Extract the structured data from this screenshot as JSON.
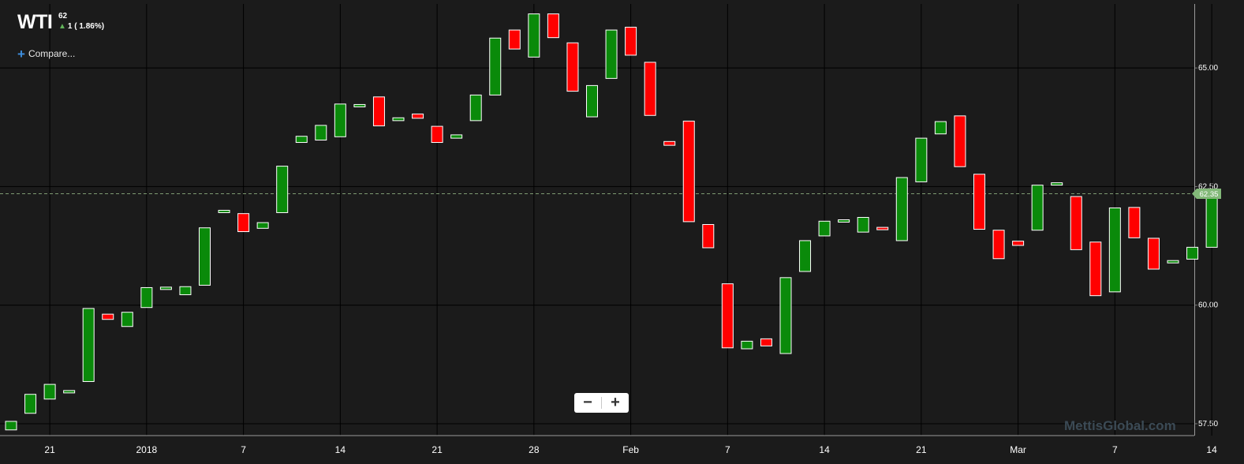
{
  "header": {
    "symbol": "WTI",
    "last_price": "62",
    "change_text": "1 ( 1.86%)",
    "change_direction": "up"
  },
  "toolbar": {
    "compare_label": "Compare..."
  },
  "zoom": {
    "minus_label": "−",
    "plus_label": "+"
  },
  "watermark": "MettisGlobal.com",
  "colors": {
    "background": "#1b1b1b",
    "grid": "#000000",
    "up": "#0a8a0a",
    "down": "#ff0000",
    "last_price_tag": "#83b979",
    "up_arrow": "#62b35a",
    "compare_plus": "#3d8fe0"
  },
  "chart_data": {
    "type": "candlestick",
    "title": "WTI",
    "x_tick_labels": [
      "21",
      "2018",
      "7",
      "14",
      "21",
      "28",
      "Feb",
      "7",
      "14",
      "21",
      "Mar",
      "7",
      "14"
    ],
    "y_tick_labels": [
      "65.00",
      "62.50",
      "60.00",
      "57.50"
    ],
    "ylim": [
      57.25,
      66.35
    ],
    "grid": true,
    "last_price_label": "62.35",
    "last_price_value": 62.35,
    "series": [
      {
        "dir": "up",
        "open": 57.37,
        "close": 57.55
      },
      {
        "dir": "up",
        "open": 57.72,
        "close": 58.12
      },
      {
        "dir": "up",
        "open": 58.02,
        "close": 58.33
      },
      {
        "dir": "up",
        "open": 58.15,
        "close": 58.2
      },
      {
        "dir": "up",
        "open": 58.39,
        "close": 59.93
      },
      {
        "dir": "down",
        "open": 59.81,
        "close": 59.7
      },
      {
        "dir": "up",
        "open": 59.55,
        "close": 59.85
      },
      {
        "dir": "up",
        "open": 59.95,
        "close": 60.37
      },
      {
        "dir": "up",
        "open": 60.37,
        "close": 60.38
      },
      {
        "dir": "up",
        "open": 60.22,
        "close": 60.39
      },
      {
        "dir": "up",
        "open": 60.42,
        "close": 61.63
      },
      {
        "dir": "up",
        "open": 61.97,
        "close": 62.0
      },
      {
        "dir": "down",
        "open": 61.93,
        "close": 61.55
      },
      {
        "dir": "up",
        "open": 61.62,
        "close": 61.74
      },
      {
        "dir": "up",
        "open": 61.95,
        "close": 62.93
      },
      {
        "dir": "up",
        "open": 63.43,
        "close": 63.56
      },
      {
        "dir": "up",
        "open": 63.48,
        "close": 63.79
      },
      {
        "dir": "up",
        "open": 63.55,
        "close": 64.24
      },
      {
        "dir": "up",
        "open": 64.22,
        "close": 64.23
      },
      {
        "dir": "down",
        "open": 64.39,
        "close": 63.78
      },
      {
        "dir": "up",
        "open": 63.89,
        "close": 63.95
      },
      {
        "dir": "down",
        "open": 64.03,
        "close": 63.94
      },
      {
        "dir": "down",
        "open": 63.77,
        "close": 63.43
      },
      {
        "dir": "up",
        "open": 63.52,
        "close": 63.59
      },
      {
        "dir": "up",
        "open": 63.89,
        "close": 64.43
      },
      {
        "dir": "up",
        "open": 64.43,
        "close": 65.63
      },
      {
        "dir": "down",
        "open": 65.8,
        "close": 65.4
      },
      {
        "dir": "up",
        "open": 65.23,
        "close": 66.14
      },
      {
        "dir": "down",
        "open": 66.14,
        "close": 65.64
      },
      {
        "dir": "down",
        "open": 65.53,
        "close": 64.51
      },
      {
        "dir": "up",
        "open": 63.97,
        "close": 64.63
      },
      {
        "dir": "up",
        "open": 64.78,
        "close": 65.8
      },
      {
        "dir": "down",
        "open": 65.86,
        "close": 65.27
      },
      {
        "dir": "down",
        "open": 65.12,
        "close": 64.0
      },
      {
        "dir": "down",
        "open": 63.45,
        "close": 63.37
      },
      {
        "dir": "down",
        "open": 63.88,
        "close": 61.76
      },
      {
        "dir": "down",
        "open": 61.7,
        "close": 61.21
      },
      {
        "dir": "down",
        "open": 60.45,
        "close": 59.1
      },
      {
        "dir": "up",
        "open": 59.08,
        "close": 59.24
      },
      {
        "dir": "down",
        "open": 59.29,
        "close": 59.14
      },
      {
        "dir": "up",
        "open": 58.98,
        "close": 60.58
      },
      {
        "dir": "up",
        "open": 60.71,
        "close": 61.36
      },
      {
        "dir": "up",
        "open": 61.46,
        "close": 61.77
      },
      {
        "dir": "up",
        "open": 61.78,
        "close": 61.8
      },
      {
        "dir": "up",
        "open": 61.54,
        "close": 61.85
      },
      {
        "dir": "down",
        "open": 61.64,
        "close": 61.59
      },
      {
        "dir": "up",
        "open": 61.36,
        "close": 62.69
      },
      {
        "dir": "up",
        "open": 62.6,
        "close": 63.52
      },
      {
        "dir": "up",
        "open": 63.61,
        "close": 63.87
      },
      {
        "dir": "down",
        "open": 63.99,
        "close": 62.92
      },
      {
        "dir": "down",
        "open": 62.76,
        "close": 61.6
      },
      {
        "dir": "down",
        "open": 61.58,
        "close": 60.98
      },
      {
        "dir": "down",
        "open": 61.35,
        "close": 61.26
      },
      {
        "dir": "up",
        "open": 61.58,
        "close": 62.53
      },
      {
        "dir": "up",
        "open": 62.55,
        "close": 62.58
      },
      {
        "dir": "down",
        "open": 62.29,
        "close": 61.17
      },
      {
        "dir": "down",
        "open": 61.33,
        "close": 60.2
      },
      {
        "dir": "up",
        "open": 60.28,
        "close": 62.05
      },
      {
        "dir": "down",
        "open": 62.06,
        "close": 61.42
      },
      {
        "dir": "down",
        "open": 61.41,
        "close": 60.76
      },
      {
        "dir": "up",
        "open": 60.89,
        "close": 60.94
      },
      {
        "dir": "up",
        "open": 60.97,
        "close": 61.22
      },
      {
        "dir": "up",
        "open": 61.22,
        "close": 62.33
      }
    ]
  }
}
